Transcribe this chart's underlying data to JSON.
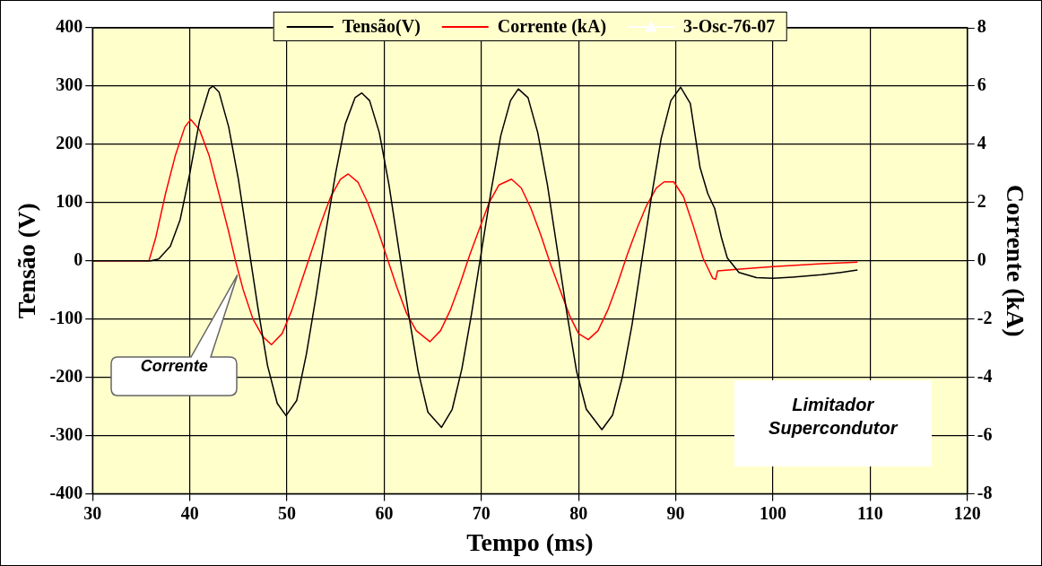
{
  "chart_data": {
    "type": "line",
    "xlabel": "Tempo (ms)",
    "ylabel": "Tensão (V)",
    "y2label": "Corrente (kA)",
    "xlim": [
      30,
      120
    ],
    "xticks": [
      30,
      40,
      50,
      60,
      70,
      80,
      90,
      100,
      110,
      120
    ],
    "ylim": [
      -400,
      400
    ],
    "yticks": [
      -400,
      -300,
      -200,
      -100,
      0,
      100,
      200,
      300,
      400
    ],
    "y2lim": [
      -8,
      8
    ],
    "y2ticks": [
      -8,
      -6,
      -4,
      -2,
      0,
      2,
      4,
      6,
      8
    ],
    "grid": true,
    "legend": "top",
    "marker": "none",
    "line_style": "solid",
    "series": [
      {
        "name": "Tensão(V)",
        "color": "#000000",
        "x": [
          30,
          36,
          36.8,
          38,
          39,
          40,
          41,
          42,
          42.4,
          43,
          44,
          45,
          46,
          47,
          48,
          49,
          49.9,
          51,
          52,
          53,
          54,
          55,
          56,
          57,
          57.7,
          58.5,
          59.5,
          60.5,
          61.5,
          62.5,
          63.5,
          64.5,
          65.9,
          67,
          68,
          69,
          70,
          71,
          72,
          73,
          73.8,
          74.8,
          75.8,
          76.8,
          77.8,
          78.8,
          79.8,
          80.8,
          82.4,
          83.5,
          84.5,
          85.5,
          86.5,
          87.5,
          88.5,
          89.5,
          90.5,
          91.5,
          92.5,
          93.3,
          94,
          94.7,
          95.3,
          96.5,
          98.3,
          100,
          102,
          105,
          107,
          108.7
        ],
        "values": [
          0,
          0,
          3,
          25,
          70,
          150,
          240,
          295,
          300,
          290,
          230,
          140,
          30,
          -80,
          -180,
          -245,
          -266,
          -240,
          -160,
          -60,
          50,
          150,
          235,
          280,
          288,
          275,
          220,
          130,
          20,
          -90,
          -190,
          -260,
          -286,
          -255,
          -185,
          -90,
          15,
          120,
          215,
          275,
          295,
          280,
          220,
          130,
          20,
          -90,
          -190,
          -255,
          -290,
          -265,
          -200,
          -110,
          0,
          110,
          210,
          275,
          298,
          270,
          160,
          115,
          90,
          40,
          5,
          -20,
          -29,
          -30,
          -28,
          -24,
          -20,
          -16
        ]
      },
      {
        "name": "Corrente (kA)",
        "color": "#ff0000",
        "axis": "y2",
        "x": [
          30,
          35.8,
          36.5,
          37.5,
          38.5,
          39.5,
          40.1,
          41,
          42,
          43,
          44,
          44.7,
          45.5,
          46.5,
          47.5,
          48.4,
          49.5,
          50.5,
          51.5,
          52.5,
          53.5,
          54.5,
          55.5,
          56.3,
          57.3,
          58.3,
          59.3,
          60.3,
          61.3,
          62.3,
          63.3,
          64.7,
          65.8,
          66.8,
          67.8,
          68.8,
          69.8,
          70.8,
          71.8,
          73.1,
          74.1,
          75.1,
          76.1,
          77.1,
          78.1,
          79.1,
          80,
          81,
          82,
          83,
          84,
          85,
          86,
          87,
          88,
          88.8,
          89.8,
          90.8,
          91.8,
          92.8,
          93.8,
          94.1,
          94.3,
          96,
          100,
          105,
          108.7
        ],
        "values": [
          0,
          0,
          0.8,
          2.3,
          3.6,
          4.6,
          4.85,
          4.5,
          3.6,
          2.3,
          1.0,
          0,
          -1.0,
          -2.0,
          -2.6,
          -2.88,
          -2.5,
          -1.7,
          -0.7,
          0.3,
          1.3,
          2.2,
          2.8,
          2.98,
          2.7,
          2.0,
          1.1,
          0.1,
          -0.9,
          -1.8,
          -2.4,
          -2.78,
          -2.4,
          -1.7,
          -0.8,
          0.2,
          1.1,
          2.0,
          2.6,
          2.8,
          2.5,
          1.8,
          0.9,
          -0.1,
          -1.0,
          -1.9,
          -2.5,
          -2.71,
          -2.4,
          -1.7,
          -0.8,
          0.2,
          1.1,
          1.9,
          2.5,
          2.71,
          2.71,
          2.2,
          1.2,
          0.1,
          -0.6,
          -0.64,
          -0.35,
          -0.3,
          -0.2,
          -0.1,
          -0.05
        ]
      },
      {
        "name": "3-Osc-76-07",
        "color": "#ffffff",
        "marker": "triangle"
      }
    ],
    "annotations": [
      "Corrente",
      "Limitador Supercondutor"
    ]
  }
}
